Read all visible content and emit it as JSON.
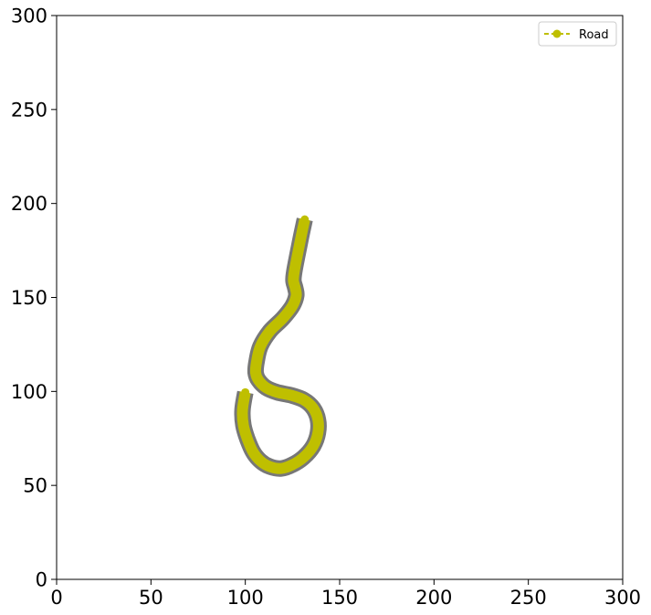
{
  "chart_data": {
    "type": "line",
    "xlim": [
      0,
      300
    ],
    "ylim": [
      0,
      300
    ],
    "x_ticks": [
      "0",
      "50",
      "100",
      "150",
      "200",
      "250",
      "300"
    ],
    "y_ticks": [
      "0",
      "50",
      "100",
      "150",
      "200",
      "250",
      "300"
    ],
    "grid": false,
    "legend_position": "top-right",
    "series": [
      {
        "name": "Road",
        "color": "#bfbf00",
        "edge_color": "#777777",
        "line_style": "dashed",
        "marker": "circle",
        "x": [
          131.5,
          129.5,
          127.5,
          126,
          125.5,
          126.5,
          127,
          125,
          120,
          113,
          108,
          106,
          105.5,
          107,
          111,
          117,
          124,
          131,
          136,
          138.5,
          138.5,
          136,
          131,
          125,
          119,
          113,
          108,
          104,
          101,
          99,
          98.5,
          100
        ],
        "y": [
          191.5,
          182,
          172,
          164,
          159,
          155,
          151,
          145.5,
          139,
          132,
          124,
          116,
          110,
          106,
          102,
          99.5,
          98,
          95.5,
          91,
          85,
          78,
          71,
          65,
          61,
          59,
          60,
          63,
          68,
          75,
          82,
          90,
          99.5
        ]
      }
    ]
  }
}
